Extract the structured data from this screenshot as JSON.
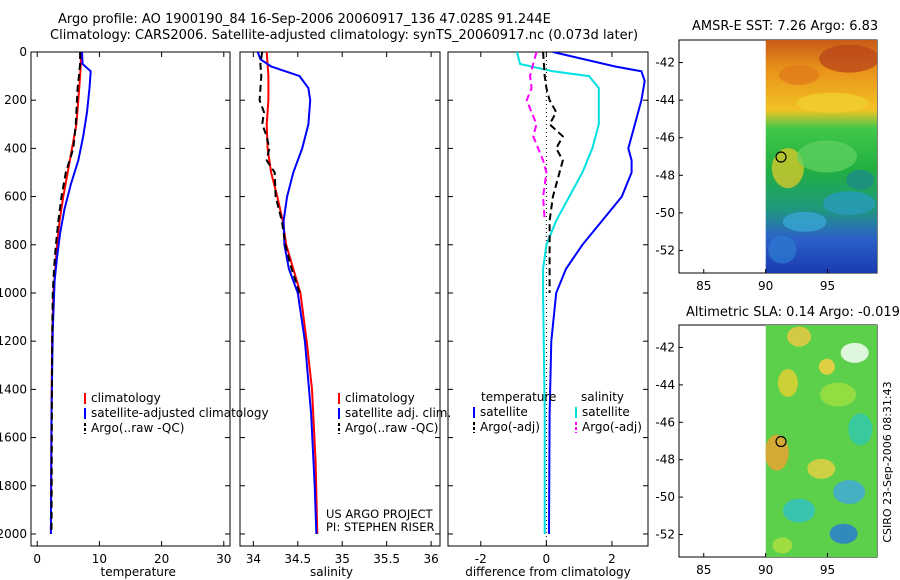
{
  "figure": {
    "title_line1": "Argo profile: AO 1900190_84 16-Sep-2006 20060917_136 47.028S 91.244E",
    "title_line2": "Climatology: CARS2006. Satellite-adjusted climatology: synTS_20060917.nc (0.073d later)",
    "side_label": "CSIRO 23-Sep-2006 08:31:43"
  },
  "chart_data": [
    {
      "type": "line",
      "xlabel": "temperature",
      "xlim": [
        -1,
        31
      ],
      "ylim": [
        0,
        2050
      ],
      "y_reversed": true,
      "xticks": [
        0,
        10,
        20,
        30
      ],
      "yticks": [
        0,
        200,
        400,
        600,
        800,
        1000,
        1200,
        1400,
        1600,
        1800,
        2000
      ],
      "legend": [
        "climatology",
        "satellite-adjusted climatology",
        "Argo(..raw -QC)"
      ],
      "series": [
        {
          "name": "climatology",
          "color": "#ff0000",
          "dash": "solid",
          "x": [
            7.0,
            7.0,
            6.9,
            6.6,
            6.3,
            5.6,
            4.9,
            4.2,
            3.6,
            3.2,
            2.9,
            2.6,
            2.4,
            2.3,
            2.2
          ],
          "y": [
            0,
            50,
            100,
            200,
            300,
            400,
            500,
            600,
            700,
            800,
            900,
            1000,
            1200,
            1500,
            2000
          ]
        },
        {
          "name": "satellite-adjusted climatology",
          "color": "#0000ff",
          "dash": "solid",
          "x": [
            7.2,
            7.3,
            8.6,
            8.4,
            8.0,
            7.4,
            6.6,
            5.4,
            4.4,
            3.7,
            3.2,
            2.8,
            2.5,
            2.3,
            2.2
          ],
          "y": [
            0,
            50,
            80,
            150,
            250,
            350,
            450,
            550,
            650,
            750,
            850,
            950,
            1150,
            1500,
            2000
          ]
        },
        {
          "name": "Argo(..raw -QC)",
          "color": "#000000",
          "dash": "dashed",
          "x": [
            6.9,
            6.9,
            6.7,
            6.5,
            6.4,
            6.2,
            5.8,
            5.2,
            4.6,
            3.9,
            3.4,
            3.0,
            2.7,
            2.5,
            2.4,
            2.3
          ],
          "y": [
            0,
            50,
            100,
            150,
            200,
            300,
            400,
            450,
            500,
            600,
            700,
            800,
            900,
            1000,
            1200,
            2000
          ]
        }
      ]
    },
    {
      "type": "line",
      "xlabel": "salinity",
      "xlim": [
        33.85,
        36.1
      ],
      "ylim": [
        0,
        2050
      ],
      "y_reversed": true,
      "xticks": [
        34,
        34.5,
        35,
        35.5,
        36
      ],
      "xticklabels": [
        "34",
        "34.5",
        "35",
        "35.5",
        "36"
      ],
      "legend": [
        "climatology",
        "satellite adj. clim.",
        "Argo(..raw -QC)"
      ],
      "annotations": [
        "US ARGO PROJECT",
        "PI: STEPHEN RISER"
      ],
      "series": [
        {
          "name": "climatology",
          "color": "#ff0000",
          "dash": "solid",
          "x": [
            34.15,
            34.17,
            34.17,
            34.15,
            34.16,
            34.2,
            34.27,
            34.33,
            34.37,
            34.45,
            34.53,
            34.6,
            34.66,
            34.7,
            34.72
          ],
          "y": [
            0,
            100,
            200,
            300,
            400,
            500,
            600,
            700,
            800,
            900,
            1000,
            1200,
            1400,
            1700,
            2000
          ]
        },
        {
          "name": "satellite adj. clim.",
          "color": "#0000ff",
          "dash": "solid",
          "x": [
            34.05,
            34.08,
            34.2,
            34.52,
            34.62,
            34.64,
            34.62,
            34.55,
            34.45,
            34.38,
            34.34,
            34.35,
            34.4,
            34.5,
            34.58,
            34.65,
            34.69,
            34.71
          ],
          "y": [
            0,
            30,
            60,
            100,
            150,
            200,
            300,
            400,
            500,
            600,
            700,
            800,
            900,
            1000,
            1200,
            1500,
            1800,
            2000
          ]
        },
        {
          "name": "Argo(..raw -QC)",
          "color": "#000000",
          "dash": "dashed",
          "x": [
            34.1,
            34.08,
            34.09,
            34.07,
            34.12,
            34.1,
            34.15,
            34.18,
            34.15,
            34.24,
            34.25,
            34.32,
            34.36,
            34.43,
            34.52
          ],
          "y": [
            0,
            50,
            100,
            200,
            250,
            300,
            350,
            400,
            450,
            500,
            600,
            700,
            800,
            900,
            1000
          ]
        }
      ]
    },
    {
      "type": "line",
      "xlabel": "difference from climatology",
      "xlim": [
        -3,
        3.1
      ],
      "ylim": [
        0,
        2050
      ],
      "y_reversed": true,
      "xticks": [
        -2,
        0,
        2
      ],
      "legend_title_left": "temperature",
      "legend_title_right": "salinity",
      "legend_left": [
        "satellite",
        "Argo(-adj)"
      ],
      "legend_right": [
        "satellite",
        "Argo(-adj)"
      ],
      "zero_line": true,
      "series": [
        {
          "name": "temperature satellite",
          "color": "#0000ff",
          "dash": "solid",
          "x": [
            0.2,
            2.1,
            2.9,
            3.0,
            2.9,
            2.7,
            2.6,
            2.5,
            2.6,
            2.6,
            2.3,
            1.7,
            1.1,
            0.6,
            0.3,
            0.15,
            0.1,
            0.08
          ],
          "y": [
            0,
            60,
            80,
            120,
            200,
            300,
            350,
            400,
            450,
            500,
            600,
            700,
            800,
            900,
            1000,
            1200,
            1500,
            2000
          ]
        },
        {
          "name": "salinity satellite",
          "color": "#00e0e0",
          "dash": "solid",
          "x": [
            -0.9,
            -0.8,
            0.2,
            1.3,
            1.6,
            1.6,
            1.4,
            1.1,
            0.7,
            0.3,
            0.0,
            -0.1,
            -0.1,
            -0.05,
            -0.05
          ],
          "y": [
            0,
            50,
            80,
            100,
            150,
            300,
            400,
            500,
            600,
            700,
            800,
            900,
            1000,
            1500,
            2000
          ]
        },
        {
          "name": "temperature Argo(-adj)",
          "color": "#000000",
          "dash": "dashed",
          "x": [
            -0.1,
            -0.05,
            0.0,
            0.1,
            0.3,
            0.1,
            0.5,
            0.3,
            0.5,
            0.4,
            0.2,
            0.1,
            0.1,
            0.1
          ],
          "y": [
            0,
            100,
            150,
            200,
            250,
            300,
            350,
            400,
            450,
            500,
            600,
            700,
            800,
            1000
          ]
        },
        {
          "name": "salinity Argo(-adj)",
          "color": "#ff00ff",
          "dash": "dashed",
          "x": [
            -0.3,
            -0.4,
            -0.5,
            -0.45,
            -0.6,
            -0.3,
            -0.4,
            -0.1,
            0.0,
            -0.1,
            -0.05
          ],
          "y": [
            0,
            50,
            100,
            150,
            200,
            300,
            350,
            450,
            500,
            600,
            700
          ]
        }
      ]
    },
    {
      "type": "heatmap",
      "title": "AMSR-E SST: 7.26 Argo: 6.83",
      "xlim": [
        83,
        99
      ],
      "ylim": [
        -53.2,
        -40.8
      ],
      "xticks": [
        85,
        90,
        95
      ],
      "yticks": [
        -42,
        -44,
        -46,
        -48,
        -50,
        -52
      ],
      "data_x_range": [
        90,
        99
      ],
      "marker": {
        "lon": 91.244,
        "lat": -47.028
      }
    },
    {
      "type": "heatmap",
      "title": "Altimetric SLA: 0.14 Argo: -0.019",
      "xlim": [
        83,
        99
      ],
      "ylim": [
        -53.2,
        -40.8
      ],
      "xticks": [
        85,
        90,
        95
      ],
      "yticks": [
        -42,
        -44,
        -46,
        -48,
        -50,
        -52
      ],
      "data_x_range": [
        90,
        99
      ],
      "marker": {
        "lon": 91.244,
        "lat": -47.028
      }
    }
  ]
}
